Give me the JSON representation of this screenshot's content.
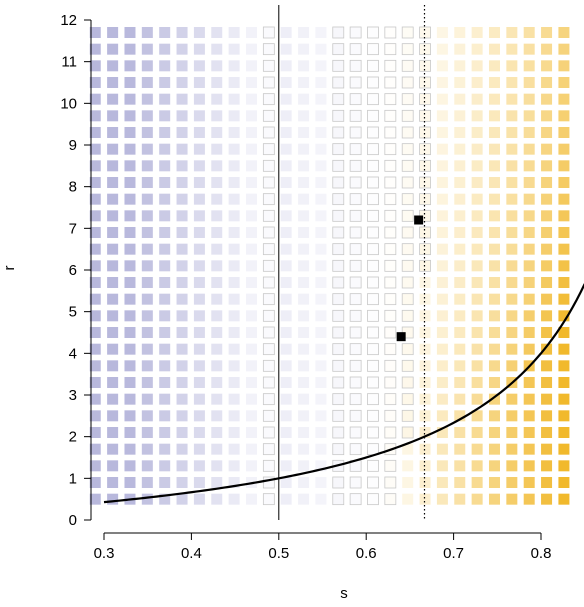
{
  "chart_data": {
    "type": "heatmap",
    "title": "",
    "xlabel": "s",
    "ylabel": "r",
    "xlim": [
      0.295,
      0.835
    ],
    "ylim": [
      0.0,
      12.0
    ],
    "x_ticks": [
      0.3,
      0.4,
      0.5,
      0.6,
      0.7,
      0.8
    ],
    "x_tick_labels": [
      "0.3",
      "0.4",
      "0.5",
      "0.6",
      "0.7",
      "0.8"
    ],
    "y_ticks": [
      0,
      1,
      2,
      3,
      4,
      5,
      6,
      7,
      8,
      9,
      10,
      11,
      12
    ],
    "y_tick_labels": [
      "0",
      "1",
      "2",
      "3",
      "4",
      "5",
      "6",
      "7",
      "8",
      "9",
      "10",
      "11",
      "12"
    ],
    "grid": {
      "s_start": 0.29,
      "s_step": 0.01986,
      "s_count": 28,
      "r_start": 0.5,
      "r_step": 0.4,
      "r_count": 29
    },
    "colors": {
      "low": "#b8b8dc",
      "neutral": "#ffffff",
      "high": "#f0b41e",
      "neutral_edge": "#c8c8c8",
      "line": "#000000"
    },
    "vertical_lines": [
      {
        "s": 0.5,
        "style": "solid"
      },
      {
        "s": 0.6667,
        "style": "dotted"
      }
    ],
    "curve": {
      "label": "",
      "formula": "r = s / (1 - s)",
      "s_range": [
        0.3,
        0.85
      ]
    },
    "highlighted_points": [
      {
        "s": 0.64,
        "r": 4.4
      },
      {
        "s": 0.66,
        "r": 7.2
      }
    ]
  }
}
